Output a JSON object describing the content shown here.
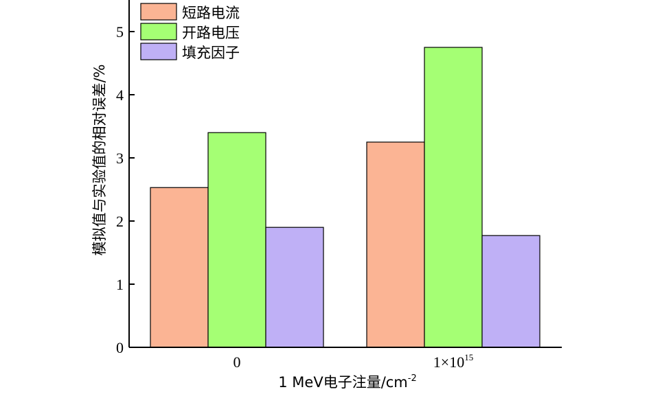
{
  "chart_data": {
    "type": "bar",
    "categories": [
      "0",
      "1×10"
    ],
    "category_superscripts": [
      "",
      "15"
    ],
    "series": [
      {
        "name": "短路电流",
        "color": "#fbb494",
        "values": [
          2.53,
          3.25
        ]
      },
      {
        "name": "开路电压",
        "color": "#a5ff74",
        "values": [
          3.4,
          4.75
        ]
      },
      {
        "name": "填充因子",
        "color": "#bfb0f6",
        "values": [
          1.9,
          1.77
        ]
      }
    ],
    "xlabel_main": "1 MeV电子注量/cm",
    "xlabel_sup": "-2",
    "ylabel": "模拟值与实验值的相对误差/%",
    "ylim": [
      0,
      5.5
    ],
    "yticks": [
      0,
      1,
      2,
      3,
      4,
      5
    ],
    "grid": false,
    "legend_position": "top-left"
  }
}
